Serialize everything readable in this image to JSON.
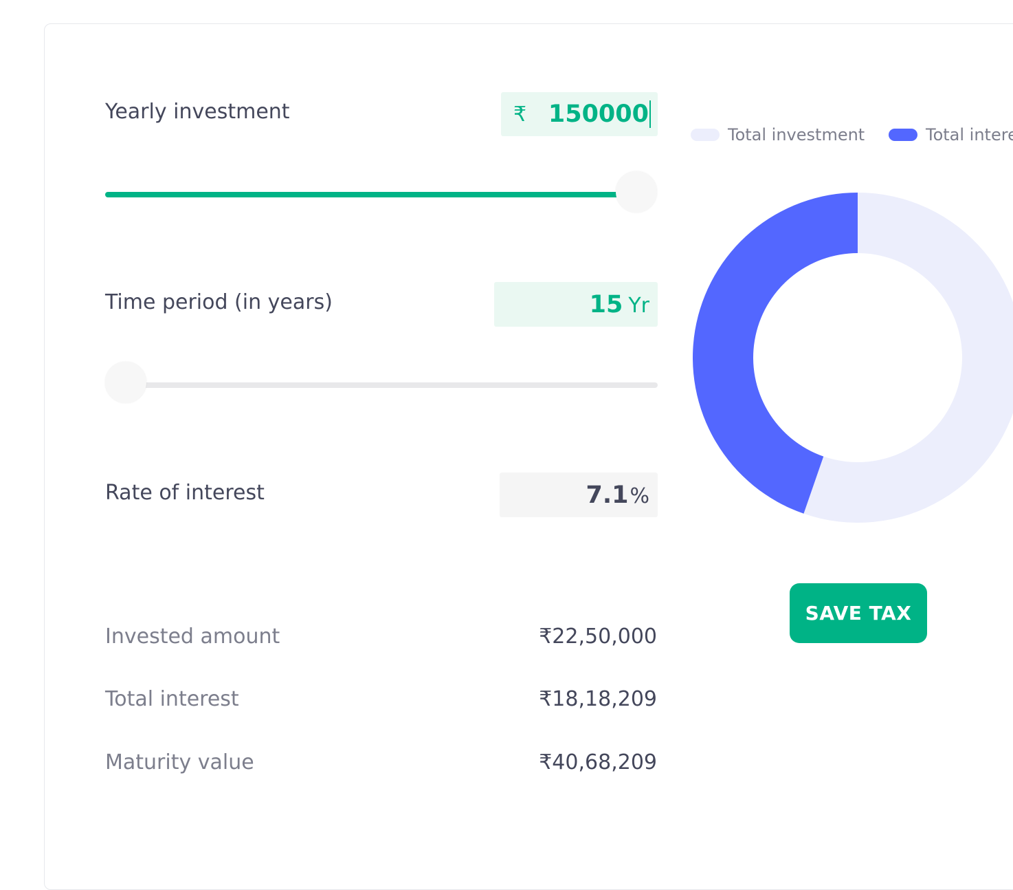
{
  "inputs": {
    "yearly_investment": {
      "label": "Yearly investment",
      "currency_symbol": "₹",
      "value": "150000",
      "slider_fraction": 1.0
    },
    "time_period": {
      "label": "Time period (in years)",
      "value": "15",
      "unit": "Yr",
      "slider_fraction": 0.0
    },
    "rate_of_interest": {
      "label": "Rate of interest",
      "value": "7.1",
      "unit": "%"
    }
  },
  "results": {
    "invested_amount": {
      "label": "Invested amount",
      "value": "₹22,50,000"
    },
    "total_interest": {
      "label": "Total interest",
      "value": "₹18,18,209"
    },
    "maturity_value": {
      "label": "Maturity value",
      "value": "₹40,68,209"
    }
  },
  "chart_data": {
    "type": "pie",
    "style": "donut",
    "labels": [
      "Total investment",
      "Total interest"
    ],
    "values": [
      2250000,
      1818209
    ],
    "colors": [
      "#eceefc",
      "#5367ff"
    ],
    "legend": [
      "Total investment",
      "Total interes"
    ],
    "legend_placement": "top"
  },
  "actions": {
    "save_tax_label": "SAVE TAX"
  },
  "colors": {
    "accent": "#00b386",
    "chart_interest": "#5367ff",
    "chart_investment": "#eceefc",
    "text_primary": "#44475b",
    "text_secondary": "#7c7e8c"
  }
}
